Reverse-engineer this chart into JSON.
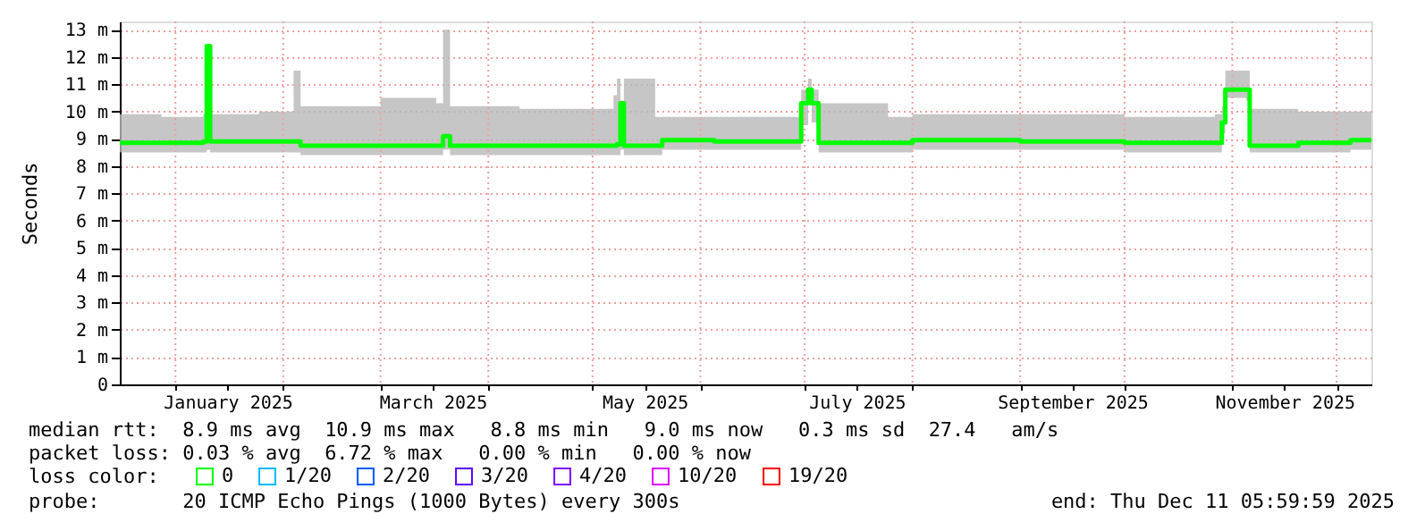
{
  "chart_data": {
    "type": "line",
    "ylabel": "Seconds",
    "legend_title": "loss color:",
    "legend": "bottom",
    "grid": true,
    "marker": "none",
    "line_style": "solid",
    "xlim": [
      "2024-12-16",
      "2025-12-11"
    ],
    "ylim": [
      0,
      13.3
    ],
    "xticks": [
      {
        "value": "2025-01-01",
        "label": null
      },
      {
        "value": "2025-01-16",
        "label": "January 2025"
      },
      {
        "value": "2025-02-01",
        "label": null
      },
      {
        "value": "2025-03-01",
        "label": null
      },
      {
        "value": "2025-03-16",
        "label": "March 2025"
      },
      {
        "value": "2025-04-01",
        "label": null
      },
      {
        "value": "2025-05-01",
        "label": null
      },
      {
        "value": "2025-05-16",
        "label": "May 2025"
      },
      {
        "value": "2025-06-01",
        "label": null
      },
      {
        "value": "2025-07-01",
        "label": null
      },
      {
        "value": "2025-07-16",
        "label": "July 2025"
      },
      {
        "value": "2025-08-01",
        "label": null
      },
      {
        "value": "2025-09-01",
        "label": null
      },
      {
        "value": "2025-09-16",
        "label": "September 2025"
      },
      {
        "value": "2025-10-01",
        "label": null
      },
      {
        "value": "2025-11-01",
        "label": null
      },
      {
        "value": "2025-11-16",
        "label": "November 2025"
      },
      {
        "value": "2025-12-01",
        "label": null
      }
    ],
    "yticks": [
      0,
      {
        "value": 1,
        "label": "1 m"
      },
      {
        "value": 2,
        "label": "2 m"
      },
      {
        "value": 3,
        "label": "3 m"
      },
      {
        "value": 4,
        "label": "4 m"
      },
      {
        "value": 5,
        "label": "5 m"
      },
      {
        "value": 6,
        "label": "6 m"
      },
      {
        "value": 7,
        "label": "7 m"
      },
      {
        "value": 8,
        "label": "8 m"
      },
      {
        "value": 9,
        "label": "9 m"
      },
      {
        "value": 10,
        "label": "10 m"
      },
      {
        "value": 11,
        "label": "11 m"
      },
      {
        "value": 12,
        "label": "12 m"
      },
      {
        "value": 13,
        "label": "13 m"
      }
    ],
    "series": [
      {
        "name": "0",
        "color": "#00ff00",
        "x": [
          "2024-12-16",
          "2024-12-28",
          "2025-01-09",
          "2025-01-10",
          "2025-01-11",
          "2025-01-25",
          "2025-02-04",
          "2025-02-06",
          "2025-03-01",
          "2025-03-17",
          "2025-03-19",
          "2025-03-21",
          "2025-04-10",
          "2025-05-07",
          "2025-05-08",
          "2025-05-09",
          "2025-05-10",
          "2025-05-19",
          "2025-05-21",
          "2025-06-05",
          "2025-06-28",
          "2025-06-30",
          "2025-07-02",
          "2025-07-03",
          "2025-07-05",
          "2025-07-25",
          "2025-08-01",
          "2025-09-01",
          "2025-10-01",
          "2025-10-27",
          "2025-10-29",
          "2025-10-30",
          "2025-11-05",
          "2025-11-06",
          "2025-11-20",
          "2025-12-05",
          "2025-12-11"
        ],
        "values": [
          8.85,
          8.85,
          8.9,
          12.4,
          8.9,
          8.9,
          8.9,
          8.75,
          8.75,
          8.75,
          9.1,
          8.75,
          8.75,
          8.75,
          8.8,
          10.3,
          8.75,
          8.75,
          8.95,
          8.9,
          8.9,
          10.3,
          10.8,
          10.3,
          8.85,
          8.85,
          8.95,
          8.9,
          8.85,
          8.85,
          9.6,
          10.8,
          10.8,
          8.75,
          8.85,
          8.95,
          8.95
        ],
        "lower": [
          8.5,
          8.5,
          8.5,
          8.6,
          8.5,
          8.5,
          8.5,
          8.4,
          8.4,
          8.4,
          8.6,
          8.4,
          8.4,
          8.4,
          8.4,
          8.6,
          8.4,
          8.4,
          8.6,
          8.6,
          8.6,
          9.5,
          10.3,
          9.6,
          8.5,
          8.5,
          8.6,
          8.6,
          8.5,
          8.5,
          9.2,
          10.5,
          10.4,
          8.5,
          8.5,
          8.6,
          8.6
        ],
        "upper": [
          9.9,
          9.8,
          9.9,
          12.4,
          9.9,
          10.0,
          11.5,
          10.2,
          10.5,
          10.3,
          13.0,
          10.2,
          10.1,
          10.6,
          11.2,
          10.4,
          11.2,
          9.8,
          9.8,
          9.8,
          9.8,
          10.8,
          11.2,
          10.8,
          10.3,
          9.8,
          9.9,
          9.9,
          9.8,
          9.9,
          10.2,
          11.5,
          11.5,
          10.1,
          10.0,
          10.0,
          10.0
        ]
      },
      {
        "name": "1/20",
        "color": "#00b8ff"
      },
      {
        "name": "2/20",
        "color": "#0059ff"
      },
      {
        "name": "3/20",
        "color": "#5e00ff"
      },
      {
        "name": "4/20",
        "color": "#7e00ff"
      },
      {
        "name": "10/20",
        "color": "#dd00ff"
      },
      {
        "name": "19/20",
        "color": "#ff0000"
      }
    ],
    "annotations": [
      "median rtt:  8.9 ms avg  10.9 ms max   8.8 ms min   9.0 ms now   0.3 ms sd  27.4   am/s",
      "packet loss: 0.03 % avg  6.72 % max   0.00 % min   0.00 % now",
      "probe:       20 ICMP Echo Pings (1000 Bytes) every 300s",
      "end: Thu Dec 11 05:59:59 2025"
    ]
  }
}
